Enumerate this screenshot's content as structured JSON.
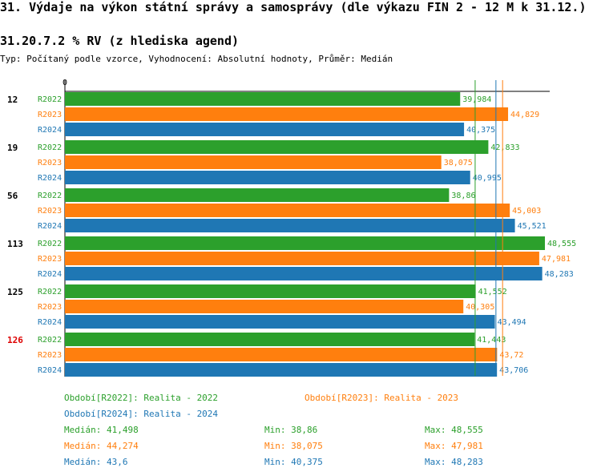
{
  "header": {
    "title": "31. Výdaje na výkon státní správy a samosprávy (dle výkazu FIN 2 - 12 M k 31.12.)",
    "subtitle": "31.20.7.2 % RV (z hlediska agend)",
    "type_line": "Typ: Počítaný podle vzorce, Vyhodnocení: Absolutní hodnoty, Průměr: Medián"
  },
  "colors": {
    "R2022": "#2ca02c",
    "R2023": "#ff7f0e",
    "R2024": "#1f77b4",
    "highlight": "#dd0000"
  },
  "chart_data": {
    "type": "bar",
    "orientation": "horizontal",
    "axis_zero_label": "0",
    "xlim": [
      0,
      51
    ],
    "categories": [
      "12",
      "19",
      "56",
      "113",
      "125",
      "126"
    ],
    "highlighted_category": "126",
    "series": [
      {
        "name": "R2022",
        "values": [
          39.984,
          42.833,
          38.86,
          48.555,
          41.552,
          41.443
        ],
        "labels": [
          "39,984",
          "42,833",
          "38,86",
          "48,555",
          "41,552",
          "41,443"
        ]
      },
      {
        "name": "R2023",
        "values": [
          44.829,
          38.075,
          45.003,
          47.981,
          40.305,
          43.72
        ],
        "labels": [
          "44,829",
          "38,075",
          "45,003",
          "47,981",
          "40,305",
          "43,72"
        ]
      },
      {
        "name": "R2024",
        "values": [
          40.375,
          40.995,
          45.521,
          48.283,
          43.494,
          43.706
        ],
        "labels": [
          "40,375",
          "40,995",
          "45,521",
          "48,283",
          "43,494",
          "43,706"
        ]
      }
    ],
    "medians": {
      "R2022": 41.498,
      "R2023": 44.274,
      "R2024": 43.6
    }
  },
  "legend": {
    "period_r2022": "Období[R2022]: Realita - 2022",
    "period_r2023": "Období[R2023]: Realita - 2023",
    "period_r2024": "Období[R2024]: Realita - 2024",
    "stats": [
      {
        "median": "Medián: 41,498",
        "min": "Min: 38,86",
        "max": "Max: 48,555"
      },
      {
        "median": "Medián: 44,274",
        "min": "Min: 38,075",
        "max": "Max: 47,981"
      },
      {
        "median": "Medián: 43,6",
        "min": "Min: 40,375",
        "max": "Max: 48,283"
      }
    ]
  }
}
